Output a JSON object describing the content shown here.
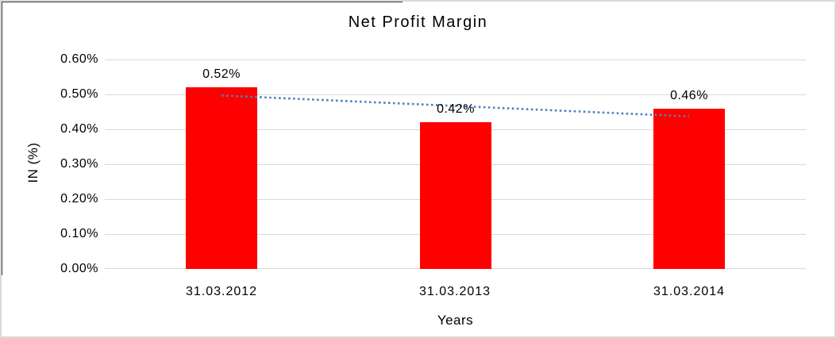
{
  "frame": {
    "background": "#ffffff",
    "border_color": "#d9d9d9",
    "accent_line_color": "#3a3a3a"
  },
  "chart_data": {
    "type": "bar",
    "title": "Net Profit Margin",
    "categories": [
      "31.03.2012",
      "31.03.2013",
      "31.03.2014"
    ],
    "values": [
      0.52,
      0.42,
      0.46
    ],
    "data_labels": [
      "0.52%",
      "0.42%",
      "0.46%"
    ],
    "xlabel": "Years",
    "ylabel": "IN (%)",
    "ylim": [
      0,
      0.6
    ],
    "ytick_labels": [
      "0.00%",
      "0.10%",
      "0.20%",
      "0.30%",
      "0.40%",
      "0.50%",
      "0.60%"
    ],
    "grid": "horizontal",
    "legend": "none",
    "bar_color": "#ff0000",
    "gridline_color": "#d9d9d9",
    "text_color": "#000000",
    "trendline": {
      "type": "linear",
      "style": "dotted",
      "color": "#4f81bd",
      "start_value": 0.497,
      "end_value": 0.437
    }
  }
}
